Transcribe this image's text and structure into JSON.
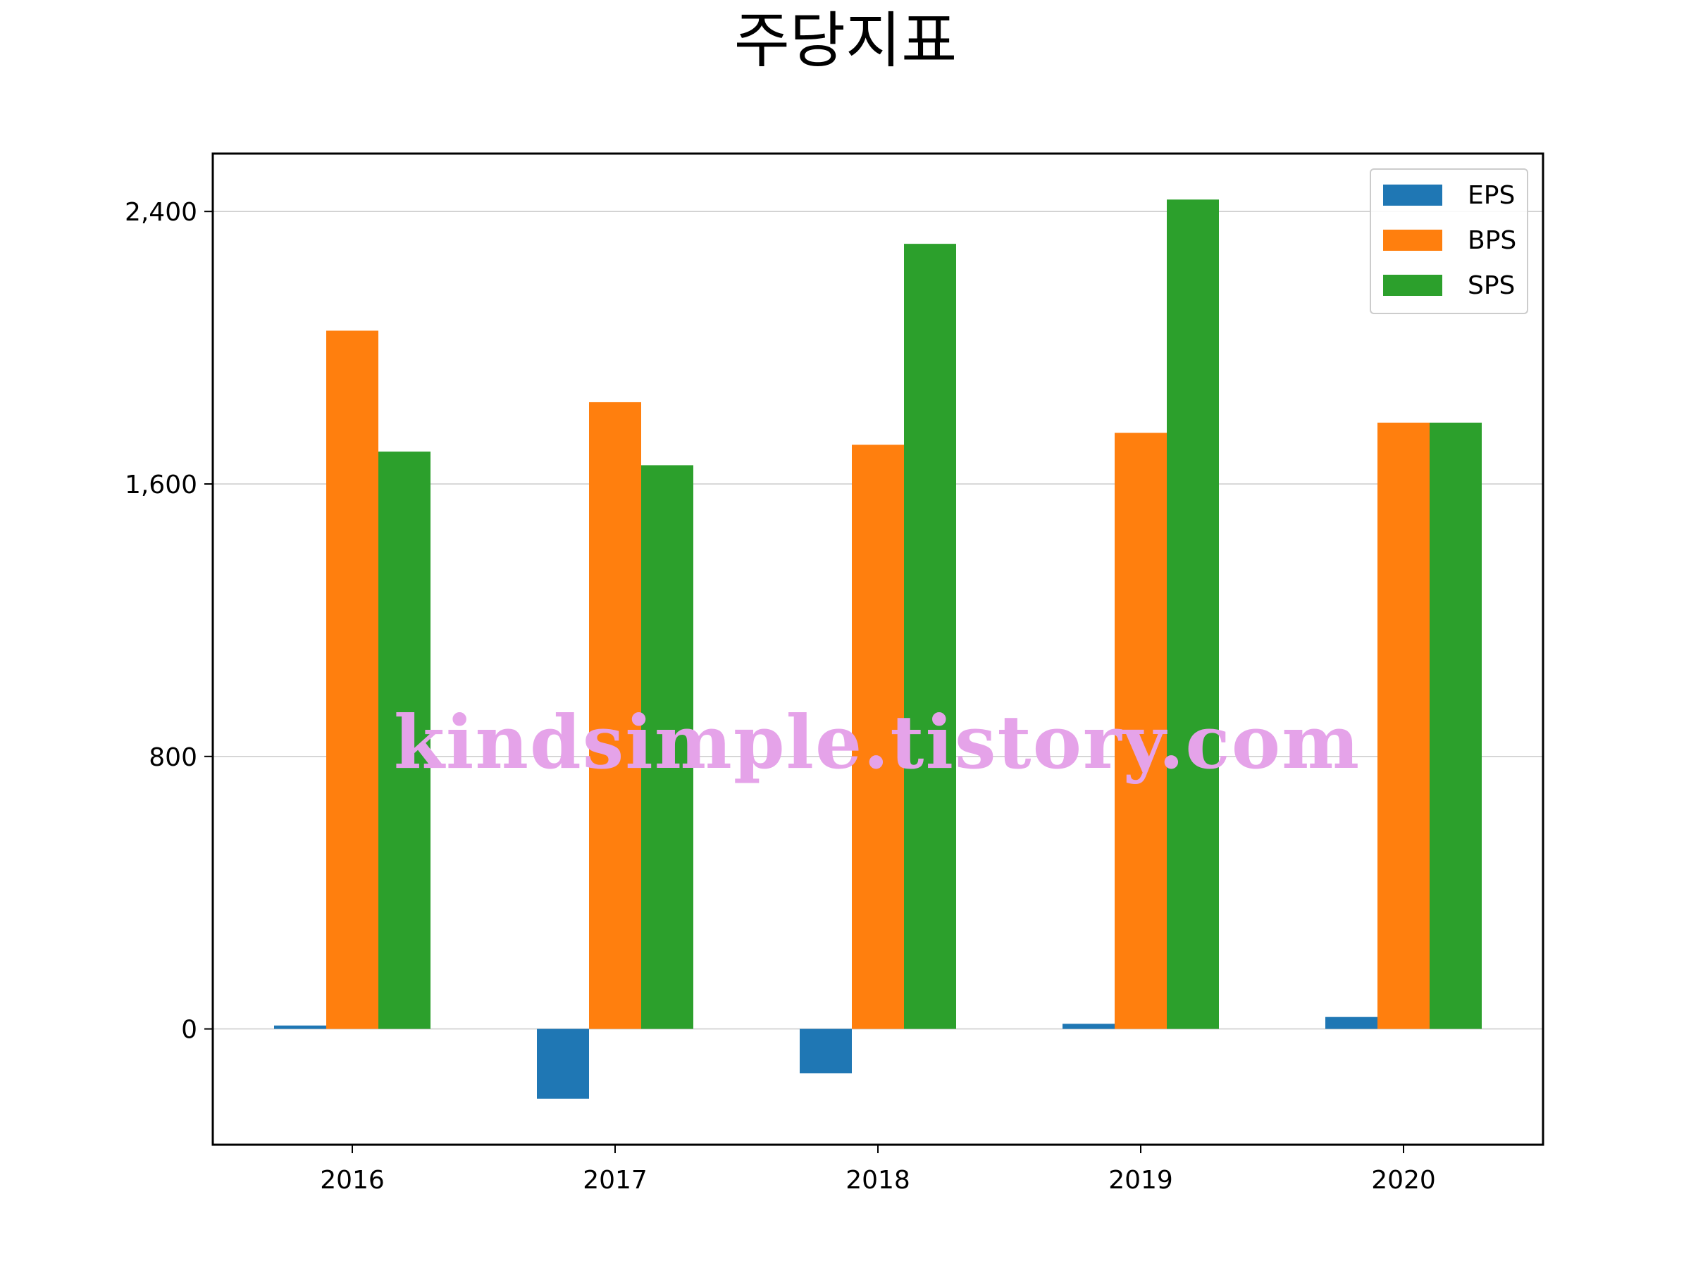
{
  "chart_data": {
    "type": "bar",
    "title": "주당지표",
    "xlabel": "",
    "ylabel": "",
    "categories": [
      "2016",
      "2017",
      "2018",
      "2019",
      "2020"
    ],
    "series": [
      {
        "name": "EPS",
        "color": "#1f77b4",
        "values": [
          10,
          -205,
          -130,
          15,
          35
        ]
      },
      {
        "name": "BPS",
        "color": "#ff7f0e",
        "values": [
          2050,
          1840,
          1715,
          1750,
          1780
        ]
      },
      {
        "name": "SPS",
        "color": "#2ca02c",
        "values": [
          1695,
          1655,
          2305,
          2435,
          1780
        ]
      }
    ],
    "ylim": [
      -340,
      2570
    ],
    "yticks": [
      0,
      800,
      1600,
      2400
    ],
    "ytick_labels": [
      "0",
      "800",
      "1,600",
      "2,400"
    ],
    "grid": "y",
    "legend_position": "top-right"
  },
  "watermark": "kindsimple.tistory.com"
}
